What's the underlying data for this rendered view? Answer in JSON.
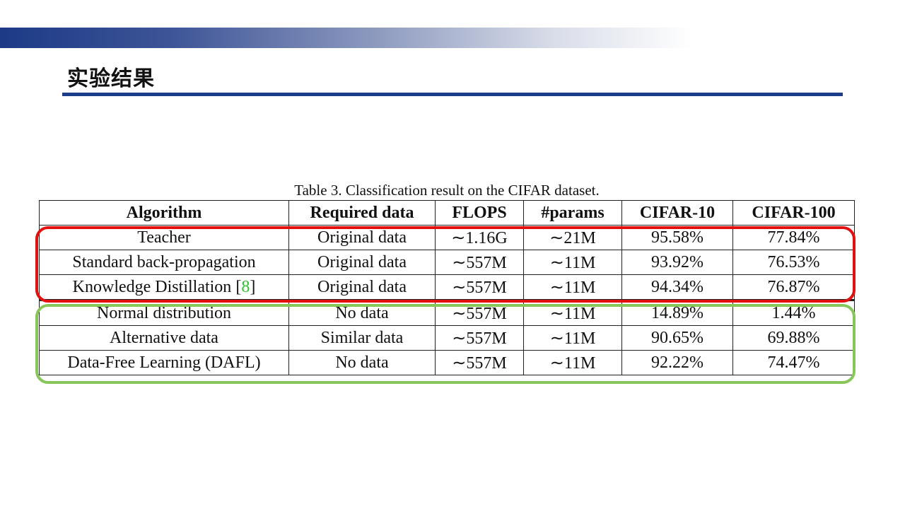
{
  "slide": {
    "title": "实验结果"
  },
  "table": {
    "caption": "Table 3. Classification result on the CIFAR dataset.",
    "headers": [
      "Algorithm",
      "Required data",
      "FLOPS",
      "#params",
      "CIFAR-10",
      "CIFAR-100"
    ],
    "rows": [
      {
        "algorithm": "Teacher",
        "cite": "",
        "required_data": "Original data",
        "flops": "∼1.16G",
        "params": "∼21M",
        "cifar10": "95.58%",
        "cifar100": "77.84%"
      },
      {
        "algorithm": "Standard back-propagation",
        "cite": "",
        "required_data": "Original data",
        "flops": "∼557M",
        "params": "∼11M",
        "cifar10": "93.92%",
        "cifar100": "76.53%"
      },
      {
        "algorithm": "Knowledge Distillation ",
        "cite": "8",
        "required_data": "Original data",
        "flops": "∼557M",
        "params": "∼11M",
        "cifar10": "94.34%",
        "cifar100": "76.87%"
      },
      {
        "algorithm": "Normal distribution",
        "cite": "",
        "required_data": "No data",
        "flops": "∼557M",
        "params": "∼11M",
        "cifar10": "14.89%",
        "cifar100": "1.44%"
      },
      {
        "algorithm": "Alternative data",
        "cite": "",
        "required_data": "Similar data",
        "flops": "∼557M",
        "params": "∼11M",
        "cifar10": "90.65%",
        "cifar100": "69.88%"
      },
      {
        "algorithm": "Data-Free Learning (DAFL)",
        "cite": "",
        "required_data": "No data",
        "flops": "∼557M",
        "params": "∼11M",
        "cifar10": "92.22%",
        "cifar100": "74.47%"
      }
    ]
  },
  "colors": {
    "header_bar": "#1c3a86",
    "title_rule": "#1c3d8c",
    "highlight_original_data": "#e31010",
    "highlight_no_original_data": "#86c65a",
    "citation": "#2fc32f"
  }
}
